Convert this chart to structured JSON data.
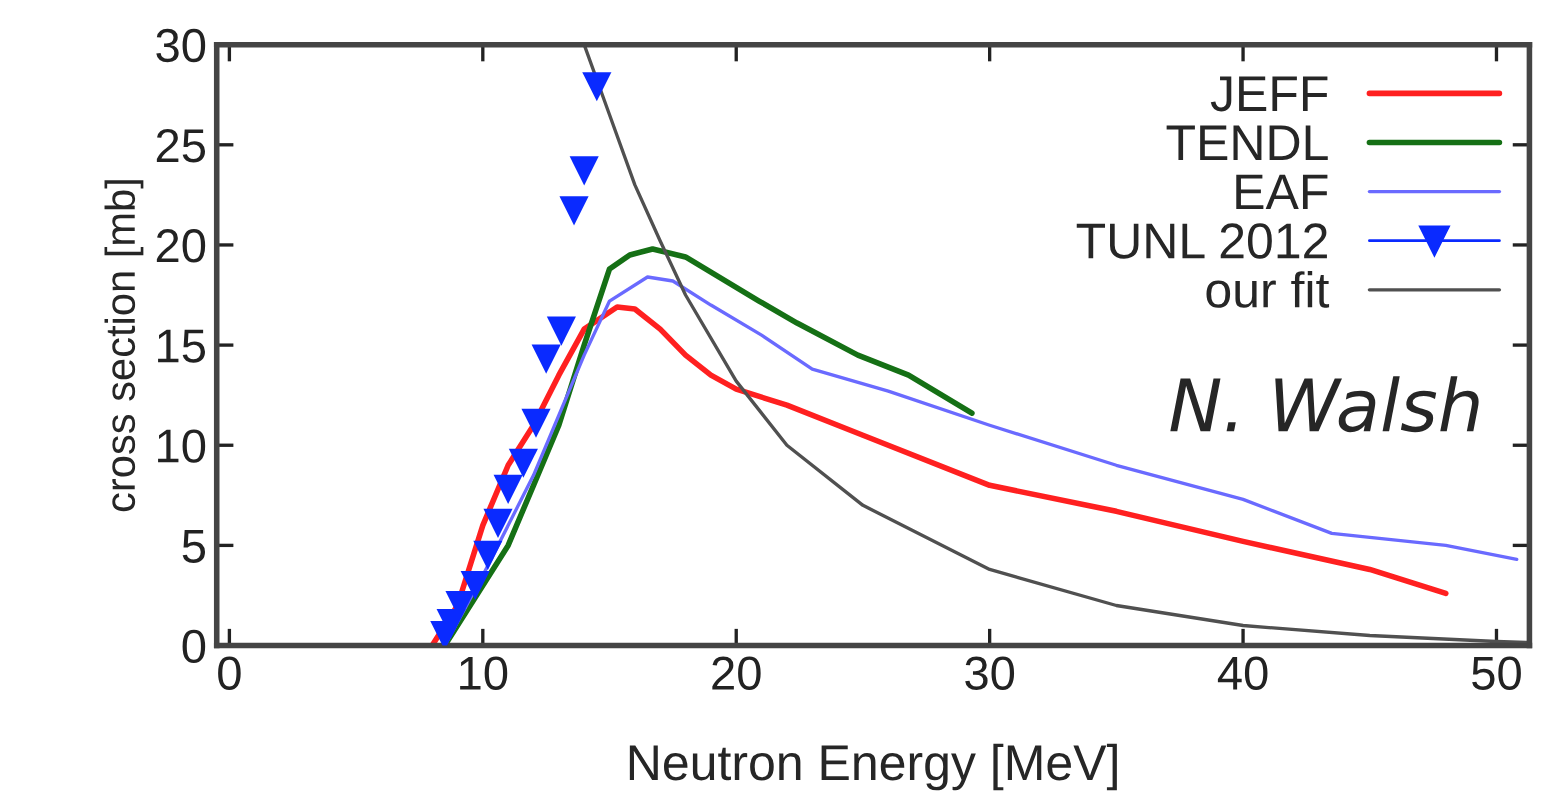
{
  "chart_data": {
    "type": "line",
    "xlabel": "Neutron Energy [MeV]",
    "ylabel": "cross section [mb]",
    "xlim": [
      -0.5,
      51.3
    ],
    "ylim": [
      0,
      30
    ],
    "xticks": [
      0,
      10,
      20,
      30,
      40,
      50
    ],
    "yticks": [
      0,
      5,
      10,
      15,
      20,
      25,
      30
    ],
    "grid": false,
    "legend": "top right",
    "annotations": [
      "N. Walsh"
    ],
    "series": [
      {
        "name": "JEFF",
        "color": "#ff2020",
        "x": [
          8,
          9,
          10,
          11,
          12,
          13,
          14,
          15.3,
          16,
          17,
          18,
          19,
          20,
          22,
          25,
          30,
          35,
          40,
          45,
          48
        ],
        "values": [
          0,
          2,
          6,
          9,
          11,
          13.5,
          15.8,
          16.9,
          16.8,
          15.8,
          14.5,
          13.5,
          12.8,
          12,
          10.5,
          8,
          6.7,
          5.2,
          3.8,
          2.6
        ]
      },
      {
        "name": "TENDL",
        "color": "#157015",
        "x": [
          8.5,
          10,
          11,
          12,
          13,
          14,
          15,
          15.8,
          16.7,
          18,
          20.9,
          22.4,
          24.8,
          26.8,
          29.3
        ],
        "values": [
          0,
          3,
          5,
          8,
          11,
          15,
          18.8,
          19.5,
          19.8,
          19.4,
          17.2,
          16.1,
          14.5,
          13.5,
          11.6
        ]
      },
      {
        "name": "EAF",
        "color": "#6a6aff",
        "x": [
          8.5,
          10,
          12,
          14,
          15,
          16.5,
          17.5,
          19,
          21,
          23,
          26,
          30,
          35,
          40,
          43.5,
          48,
          50.8
        ],
        "values": [
          0,
          3.5,
          8.5,
          14.5,
          17.2,
          18.4,
          18.2,
          17,
          15.5,
          13.8,
          12.7,
          11,
          9,
          7.3,
          5.6,
          5,
          4.3
        ]
      },
      {
        "name": "TUNL 2012",
        "type": "scatter",
        "marker": "triangle",
        "color": "#0a2aff",
        "x": [
          14.5,
          14,
          13.6,
          13.1,
          12.5,
          12.1,
          11.6,
          11,
          10.6,
          10.2,
          9.7,
          9.1,
          8.75,
          8.5
        ],
        "values": [
          27.9,
          23.7,
          21.7,
          15.7,
          14.3,
          11.1,
          9.1,
          7.8,
          6.1,
          4.5,
          3,
          2,
          1.1,
          0.5
        ]
      },
      {
        "name": "our fit",
        "color": "#505050",
        "x": [
          14,
          15,
          16,
          17,
          18,
          20,
          22,
          25,
          30,
          35,
          40,
          45,
          50,
          51.3
        ],
        "values": [
          30,
          26.5,
          23,
          20.2,
          17.5,
          13.2,
          10,
          7,
          3.8,
          2,
          1,
          0.5,
          0.2,
          0.15
        ]
      }
    ]
  }
}
